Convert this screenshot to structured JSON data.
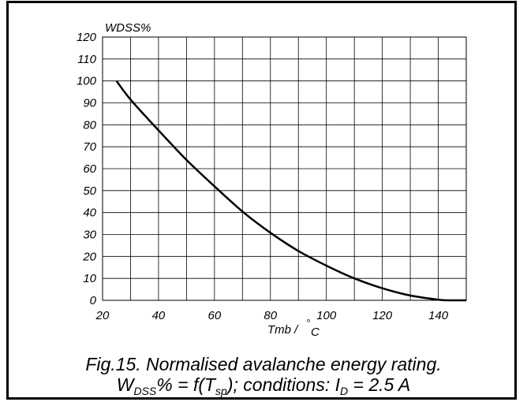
{
  "chart_data": {
    "type": "line",
    "ylabel": "WDSS%",
    "xlabel_main": "Tmb / ",
    "xlabel_degree": "°",
    "xlabel_unit": "C",
    "x_ticks": [
      "20",
      "40",
      "60",
      "80",
      "100",
      "120",
      "140"
    ],
    "y_ticks": [
      "0",
      "10",
      "20",
      "30",
      "40",
      "50",
      "60",
      "70",
      "80",
      "90",
      "100",
      "110",
      "120"
    ],
    "xlim": [
      20,
      150
    ],
    "ylim": [
      0,
      120
    ],
    "grid": true,
    "series": [
      {
        "x": [
          25,
          30,
          40,
          50,
          60,
          70,
          80,
          90,
          100,
          110,
          120,
          130,
          140,
          145,
          150
        ],
        "values": [
          100,
          91.5,
          77.5,
          64,
          52,
          40.5,
          30.8,
          22.5,
          15.8,
          10,
          5.5,
          2.2,
          0.3,
          0,
          0
        ]
      }
    ]
  },
  "caption": {
    "line1": "Fig.15.   Normalised avalanche energy rating.",
    "w": "W",
    "w_sub": "DSS",
    "mid": "% = f(T",
    "t_sub": "sp",
    "tail": "); conditions: I",
    "i_sub": "D",
    "end": " = 2.5 A"
  },
  "colors": {
    "line": "#000000",
    "grid": "#000000",
    "frame": "#000000"
  }
}
